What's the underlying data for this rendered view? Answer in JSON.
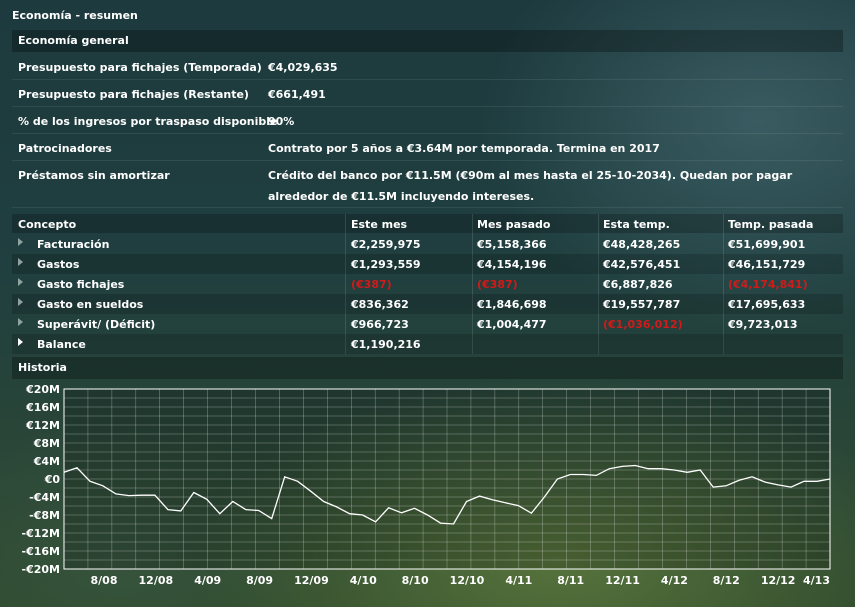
{
  "window_title": "Economía - resumen",
  "general": {
    "header": "Economía general",
    "rows": [
      {
        "label": "Presupuesto para fichajes (Temporada)",
        "value": "€4,029,635"
      },
      {
        "label": "Presupuesto para fichajes (Restante)",
        "value": "€661,491"
      },
      {
        "label": "% de los ingresos por traspaso disponible",
        "value": "90%"
      },
      {
        "label": "Patrocinadores",
        "value": "Contrato por 5 años a €3.64M por temporada. Termina en 2017"
      },
      {
        "label": "Préstamos sin amortizar",
        "value": "Crédito del banco por €11.5M (€90m al mes hasta el 25-10-2034). Quedan por pagar alrededor de €11.5M incluyendo intereses."
      }
    ]
  },
  "finance_table": {
    "columns": [
      "Concepto",
      "Este mes",
      "Mes pasado",
      "Esta temp.",
      "Temp. pasada"
    ],
    "rows": [
      {
        "concept": "Facturación",
        "values": [
          "€2,259,975",
          "€5,158,366",
          "€48,428,265",
          "€51,699,901"
        ],
        "negative": [
          false,
          false,
          false,
          false
        ]
      },
      {
        "concept": "Gastos",
        "values": [
          "€1,293,559",
          "€4,154,196",
          "€42,576,451",
          "€46,151,729"
        ],
        "negative": [
          false,
          false,
          false,
          false
        ]
      },
      {
        "concept": "Gasto fichajes",
        "values": [
          "(€387)",
          "(€387)",
          "€6,887,826",
          "(€4,174,841)"
        ],
        "negative": [
          true,
          true,
          false,
          true
        ]
      },
      {
        "concept": "Gasto en sueldos",
        "values": [
          "€836,362",
          "€1,846,698",
          "€19,557,787",
          "€17,695,633"
        ],
        "negative": [
          false,
          false,
          false,
          false
        ]
      },
      {
        "concept": "Superávit/ (Déficit)",
        "values": [
          "€966,723",
          "€1,004,477",
          "(€1,036,012)",
          "€9,723,013"
        ],
        "negative": [
          false,
          false,
          true,
          false
        ]
      },
      {
        "concept": "Balance",
        "values": [
          "€1,190,216",
          "",
          "",
          ""
        ],
        "negative": [
          false,
          false,
          false,
          false
        ]
      }
    ]
  },
  "history_header": "Historia",
  "chart_data": {
    "type": "line",
    "title": "",
    "xlabel": "",
    "ylabel": "",
    "ylim": [
      -20,
      20
    ],
    "y_unit": "M",
    "y_ticks": [
      "€20M",
      "€16M",
      "€12M",
      "€8M",
      "€4M",
      "€0",
      "-€4M",
      "-€8M",
      "-€12M",
      "-€16M",
      "-€20M"
    ],
    "x_ticks": [
      "8/08",
      "12/08",
      "4/09",
      "8/09",
      "12/09",
      "4/10",
      "8/10",
      "12/10",
      "4/11",
      "8/11",
      "12/11",
      "4/12",
      "8/12",
      "12/12",
      "4/13"
    ],
    "grid": true,
    "series": [
      {
        "values": [
          1.5,
          2.5,
          -0.5,
          -1.5,
          -3.3,
          -3.7,
          -3.6,
          -3.6,
          -6.8,
          -7.1,
          -3.0,
          -4.5,
          -7.7,
          -5.0,
          -6.8,
          -7.0,
          -8.8,
          0.5,
          -0.5,
          -2.7,
          -5.0,
          -6.2,
          -7.7,
          -8.0,
          -9.5,
          -6.4,
          -7.5,
          -6.5,
          -8.0,
          -9.8,
          -10.0,
          -5.0,
          -3.8,
          -4.6,
          -5.3,
          -5.9,
          -7.6,
          -4.0,
          0.0,
          1.0,
          1.0,
          0.8,
          2.3,
          2.8,
          3.0,
          2.3,
          2.3,
          2.0,
          1.5,
          2.0,
          -1.8,
          -1.5,
          -0.3,
          0.5,
          -0.7,
          -1.3,
          -1.8,
          -0.5,
          -0.5,
          0.0
        ]
      }
    ]
  }
}
